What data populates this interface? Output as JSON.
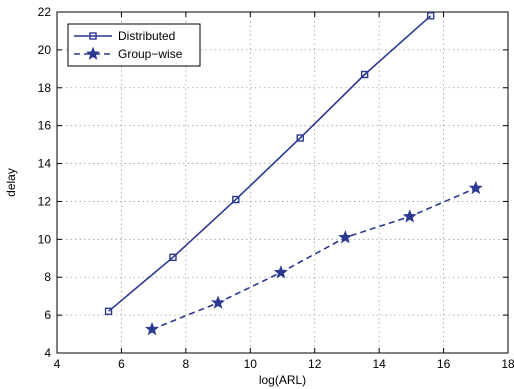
{
  "chart_data": {
    "type": "line",
    "xlabel": "log(ARL)",
    "ylabel": "delay",
    "xlim": [
      4,
      18
    ],
    "ylim": [
      4,
      22
    ],
    "x_ticks": [
      "4",
      "6",
      "8",
      "10",
      "12",
      "14",
      "16",
      "18"
    ],
    "y_ticks": [
      "4",
      "6",
      "8",
      "10",
      "12",
      "14",
      "16",
      "18",
      "20",
      "22"
    ],
    "grid": true,
    "legend_position": "top-left",
    "colors": {
      "series": "#2b3990"
    },
    "series": [
      {
        "name": "Distributed",
        "line_style": "solid",
        "marker": "square",
        "x": [
          5.6,
          7.6,
          9.55,
          11.55,
          13.55,
          15.6
        ],
        "y": [
          6.2,
          9.05,
          12.1,
          15.35,
          18.7,
          21.8
        ]
      },
      {
        "name": "Group−wise",
        "line_style": "dashed",
        "marker": "star",
        "x": [
          6.95,
          9.0,
          10.95,
          12.95,
          14.95,
          17.0
        ],
        "y": [
          5.25,
          6.65,
          8.25,
          10.1,
          11.2,
          12.7
        ]
      }
    ]
  }
}
